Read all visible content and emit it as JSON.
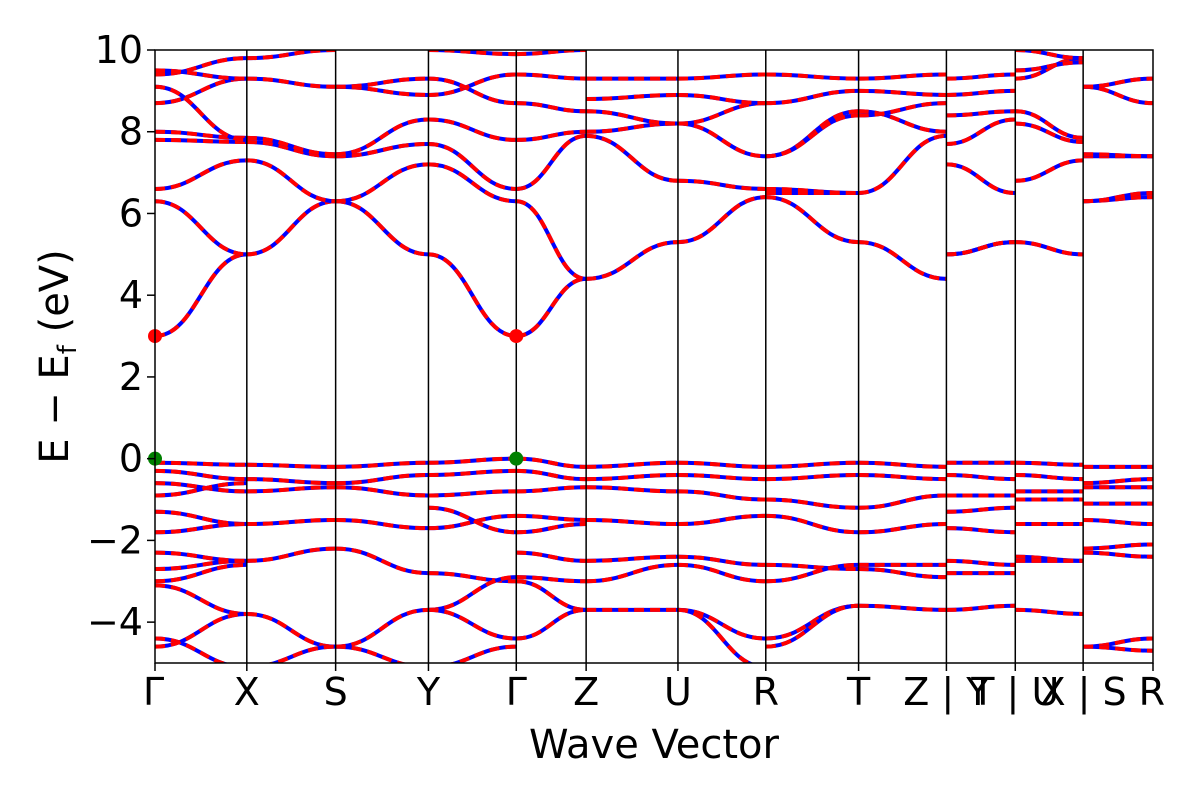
{
  "chart_data": {
    "type": "line",
    "xlabel": "Wave Vector",
    "ylabel": "E − E_f (eV)",
    "ylabel_parts": {
      "main": "E − E",
      "sub": "f",
      "unit": " (eV)"
    },
    "ylim": [
      -5,
      10
    ],
    "yticks": [
      -4,
      -2,
      0,
      2,
      4,
      6,
      8,
      10
    ],
    "ytick_labels": [
      "−4",
      "−2",
      "0",
      "2",
      "4",
      "6",
      "8",
      "10"
    ],
    "kpath_labels": [
      "Γ",
      "X",
      "S",
      "Y",
      "Γ",
      "Z",
      "U",
      "R",
      "T",
      "Z | Y",
      "T | U",
      "X | S",
      "R"
    ],
    "kpath_positions": [
      0,
      0.92,
      1.81,
      2.74,
      3.62,
      4.32,
      5.24,
      6.12,
      7.05,
      7.93,
      8.62,
      9.3,
      10.0
    ],
    "grid": false,
    "line_colors": {
      "spin_up": "#ff0000",
      "spin_down": "#0000ff"
    },
    "markers": [
      {
        "name": "CBM",
        "k": 0,
        "E": 3.0,
        "color": "#ff0000"
      },
      {
        "name": "CBM",
        "k": 3.62,
        "E": 3.0,
        "color": "#ff0000"
      },
      {
        "name": "VBM",
        "k": 0,
        "E": 0.0,
        "color": "#008000"
      },
      {
        "name": "VBM",
        "k": 3.62,
        "E": 0.0,
        "color": "#008000"
      }
    ],
    "segments": [
      {
        "from": "Γ",
        "to": "X",
        "bands": [
          [
            3.0,
            5.0
          ],
          [
            6.3,
            5.0
          ],
          [
            6.6,
            7.3
          ],
          [
            7.8,
            7.75
          ],
          [
            8.0,
            7.85
          ],
          [
            8.7,
            9.3
          ],
          [
            9.1,
            7.8
          ],
          [
            9.4,
            9.8
          ],
          [
            9.5,
            9.3
          ],
          [
            -0.1,
            -0.15
          ],
          [
            -0.3,
            -0.5
          ],
          [
            -0.6,
            -0.8
          ],
          [
            -0.9,
            -0.6
          ],
          [
            -1.3,
            -1.6
          ],
          [
            -1.8,
            -1.6
          ],
          [
            -2.3,
            -2.5
          ],
          [
            -2.7,
            -2.5
          ],
          [
            -3.0,
            -2.6
          ],
          [
            -3.1,
            -3.8
          ],
          [
            -4.4,
            -5.1
          ],
          [
            -4.6,
            -3.8
          ]
        ]
      },
      {
        "from": "X",
        "to": "S",
        "bands": [
          [
            5.0,
            6.3
          ],
          [
            7.3,
            6.3
          ],
          [
            7.75,
            7.4
          ],
          [
            7.85,
            7.45
          ],
          [
            9.3,
            9.1
          ],
          [
            9.8,
            10.0
          ],
          [
            -0.15,
            -0.2
          ],
          [
            -0.5,
            -0.6
          ],
          [
            -0.8,
            -0.7
          ],
          [
            -1.6,
            -1.5
          ],
          [
            -2.5,
            -2.2
          ],
          [
            -3.8,
            -4.6
          ],
          [
            -5.1,
            -4.6
          ]
        ]
      },
      {
        "from": "S",
        "to": "Y",
        "bands": [
          [
            6.3,
            5.0
          ],
          [
            6.3,
            7.2
          ],
          [
            7.4,
            7.7
          ],
          [
            7.45,
            8.3
          ],
          [
            9.1,
            8.9
          ],
          [
            9.1,
            9.3
          ],
          [
            -0.2,
            -0.1
          ],
          [
            -0.6,
            -0.4
          ],
          [
            -0.7,
            -0.9
          ],
          [
            -1.5,
            -1.7
          ],
          [
            -2.2,
            -2.8
          ],
          [
            -4.6,
            -3.7
          ],
          [
            -4.6,
            -5.1
          ]
        ]
      },
      {
        "from": "Y",
        "to": "Γ",
        "bands": [
          [
            5.0,
            3.0
          ],
          [
            7.2,
            6.3
          ],
          [
            7.7,
            6.6
          ],
          [
            8.3,
            7.8
          ],
          [
            8.9,
            9.4
          ],
          [
            9.3,
            8.7
          ],
          [
            10.0,
            9.9
          ],
          [
            -0.1,
            0.0
          ],
          [
            -0.4,
            -0.3
          ],
          [
            -0.9,
            -0.8
          ],
          [
            -1.7,
            -1.4
          ],
          [
            -1.2,
            -1.8
          ],
          [
            -2.8,
            -3.0
          ],
          [
            -3.7,
            -2.9
          ],
          [
            -5.1,
            -4.6
          ],
          [
            -3.7,
            -4.4
          ]
        ]
      },
      {
        "from": "Γ",
        "to": "Z",
        "bands": [
          [
            3.0,
            4.4
          ],
          [
            6.3,
            4.4
          ],
          [
            6.6,
            7.9
          ],
          [
            7.8,
            8.0
          ],
          [
            9.4,
            9.3
          ],
          [
            8.7,
            8.5
          ],
          [
            9.9,
            10.0
          ],
          [
            0.0,
            -0.2
          ],
          [
            -0.3,
            -0.5
          ],
          [
            -0.8,
            -0.7
          ],
          [
            -1.4,
            -1.5
          ],
          [
            -1.8,
            -1.6
          ],
          [
            -2.3,
            -2.5
          ],
          [
            -3.0,
            -3.7
          ],
          [
            -2.9,
            -3.0
          ],
          [
            -4.4,
            -3.7
          ]
        ]
      },
      {
        "from": "Z",
        "to": "U",
        "bands": [
          [
            4.4,
            5.3
          ],
          [
            7.9,
            6.8
          ],
          [
            8.0,
            8.2
          ],
          [
            8.5,
            8.2
          ],
          [
            9.3,
            9.3
          ],
          [
            8.8,
            8.9
          ],
          [
            -0.2,
            -0.1
          ],
          [
            -0.5,
            -0.4
          ],
          [
            -0.7,
            -0.8
          ],
          [
            -1.5,
            -1.6
          ],
          [
            -2.5,
            -2.4
          ],
          [
            -3.0,
            -2.6
          ],
          [
            -3.7,
            -3.7
          ]
        ]
      },
      {
        "from": "U",
        "to": "R",
        "bands": [
          [
            5.3,
            6.4
          ],
          [
            6.8,
            6.6
          ],
          [
            8.2,
            7.4
          ],
          [
            8.2,
            8.7
          ],
          [
            9.3,
            9.4
          ],
          [
            8.9,
            8.7
          ],
          [
            -0.1,
            -0.2
          ],
          [
            -0.4,
            -0.5
          ],
          [
            -0.8,
            -1.0
          ],
          [
            -1.6,
            -1.4
          ],
          [
            -2.4,
            -2.6
          ],
          [
            -2.6,
            -3.0
          ],
          [
            -3.7,
            -4.4
          ],
          [
            -3.7,
            -5.1
          ]
        ]
      },
      {
        "from": "R",
        "to": "T",
        "bands": [
          [
            6.4,
            5.3
          ],
          [
            6.6,
            6.5
          ],
          [
            6.5,
            6.5
          ],
          [
            7.4,
            8.5
          ],
          [
            7.4,
            8.4
          ],
          [
            8.7,
            9.0
          ],
          [
            9.4,
            9.3
          ],
          [
            -0.2,
            -0.1
          ],
          [
            -0.5,
            -0.4
          ],
          [
            -1.0,
            -1.2
          ],
          [
            -1.4,
            -1.8
          ],
          [
            -2.6,
            -2.7
          ],
          [
            -3.0,
            -2.6
          ],
          [
            -4.4,
            -3.6
          ],
          [
            -4.6,
            -3.6
          ],
          [
            -5.1,
            -5.1
          ]
        ]
      },
      {
        "from": "T",
        "to": "Z",
        "bands": [
          [
            5.3,
            4.4
          ],
          [
            6.5,
            7.9
          ],
          [
            8.5,
            8.0
          ],
          [
            8.4,
            8.7
          ],
          [
            9.0,
            8.9
          ],
          [
            9.3,
            9.4
          ],
          [
            -0.1,
            -0.2
          ],
          [
            -0.4,
            -0.5
          ],
          [
            -1.2,
            -0.9
          ],
          [
            -1.8,
            -1.6
          ],
          [
            -2.6,
            -2.6
          ],
          [
            -2.7,
            -2.9
          ],
          [
            -3.6,
            -3.7
          ]
        ]
      },
      {
        "from": "Y",
        "to": "T",
        "bands": [
          [
            5.0,
            5.3
          ],
          [
            5.0,
            5.3
          ],
          [
            7.2,
            6.5
          ],
          [
            7.7,
            8.3
          ],
          [
            8.4,
            8.5
          ],
          [
            8.9,
            9.0
          ],
          [
            9.3,
            9.4
          ],
          [
            -0.1,
            -0.1
          ],
          [
            -0.4,
            -0.5
          ],
          [
            -0.9,
            -0.9
          ],
          [
            -1.3,
            -1.2
          ],
          [
            -1.7,
            -1.8
          ],
          [
            -2.5,
            -2.6
          ],
          [
            -2.8,
            -2.8
          ],
          [
            -3.7,
            -3.6
          ]
        ]
      },
      {
        "from": "U",
        "to": "X",
        "bands": [
          [
            5.3,
            5.0
          ],
          [
            6.8,
            7.3
          ],
          [
            8.2,
            7.75
          ],
          [
            8.5,
            7.85
          ],
          [
            9.3,
            9.8
          ],
          [
            9.5,
            9.7
          ],
          [
            10.0,
            9.8
          ],
          [
            -0.1,
            -0.15
          ],
          [
            -0.4,
            -0.5
          ],
          [
            -0.8,
            -0.8
          ],
          [
            -1.0,
            -1.0
          ],
          [
            -1.6,
            -1.6
          ],
          [
            -2.4,
            -2.5
          ],
          [
            -2.5,
            -2.5
          ],
          [
            -3.7,
            -3.8
          ]
        ]
      },
      {
        "from": "S",
        "to": "R",
        "bands": [
          [
            6.3,
            6.4
          ],
          [
            6.3,
            6.5
          ],
          [
            7.4,
            7.4
          ],
          [
            7.45,
            7.4
          ],
          [
            9.1,
            8.7
          ],
          [
            9.1,
            9.3
          ],
          [
            -0.2,
            -0.2
          ],
          [
            -0.6,
            -0.5
          ],
          [
            -0.7,
            -0.7
          ],
          [
            -1.1,
            -1.1
          ],
          [
            -1.5,
            -1.6
          ],
          [
            -2.2,
            -2.1
          ],
          [
            -2.3,
            -2.4
          ],
          [
            -4.6,
            -4.4
          ],
          [
            -4.6,
            -4.7
          ]
        ]
      }
    ]
  }
}
